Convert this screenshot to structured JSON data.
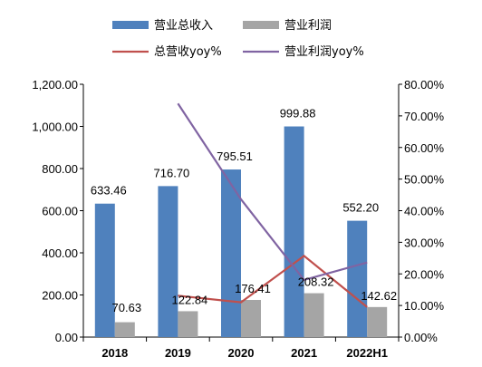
{
  "chart_data": {
    "type": "bar",
    "categories": [
      "2018",
      "2019",
      "2020",
      "2021",
      "2022H1"
    ],
    "series": [
      {
        "name": "营业总收入",
        "kind": "bar",
        "axis": "left",
        "color": "#4f81bd",
        "values": [
          633.46,
          716.7,
          795.51,
          999.88,
          552.2
        ],
        "labels": [
          "633.46",
          "716.70",
          "795.51",
          "999.88",
          "552.20"
        ]
      },
      {
        "name": "营业利润",
        "kind": "bar",
        "axis": "left",
        "color": "#a5a5a5",
        "values": [
          70.63,
          122.84,
          176.41,
          208.32,
          142.62
        ],
        "labels": [
          "70.63",
          "122.84",
          "176.41",
          "208.32",
          "142.62"
        ]
      },
      {
        "name": "总营收yoy%",
        "kind": "line",
        "axis": "right",
        "color": "#c0504d",
        "values": [
          null,
          13.1,
          11.0,
          25.7,
          9.5
        ]
      },
      {
        "name": "营业利润yoy%",
        "kind": "line",
        "axis": "right",
        "color": "#8064a2",
        "values": [
          null,
          73.9,
          43.6,
          18.1,
          23.6
        ]
      }
    ],
    "y_left": {
      "min": 0,
      "max": 1200,
      "ticks": [
        "0.00",
        "200.00",
        "400.00",
        "600.00",
        "800.00",
        "1,000.00",
        "1,200.00"
      ]
    },
    "y_right": {
      "min": 0,
      "max": 80,
      "ticks": [
        "0.00%",
        "10.00%",
        "20.00%",
        "30.00%",
        "40.00%",
        "50.00%",
        "60.00%",
        "70.00%",
        "80.00%"
      ]
    },
    "legend_position": "top",
    "grid": false
  }
}
